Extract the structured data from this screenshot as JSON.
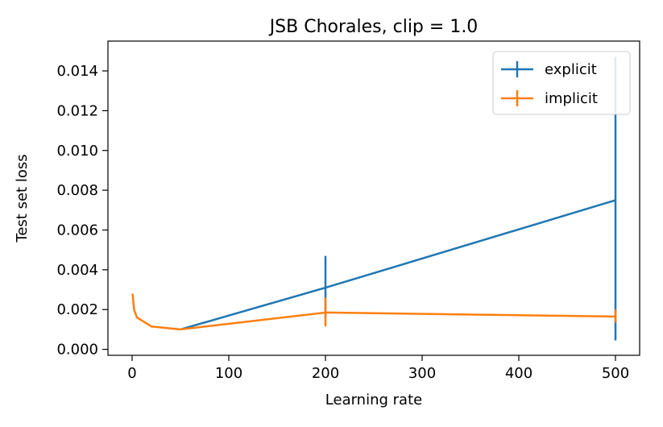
{
  "chart_data": {
    "type": "line",
    "title": "JSB Chorales, clip = 1.0",
    "xlabel": "Learning rate",
    "ylabel": "Test set loss",
    "xlim": [
      -25,
      525
    ],
    "ylim": [
      -0.0003,
      0.0155
    ],
    "xticks": [
      0,
      100,
      200,
      300,
      400,
      500
    ],
    "xtick_labels": [
      "0",
      "100",
      "200",
      "300",
      "400",
      "500"
    ],
    "yticks": [
      0.0,
      0.002,
      0.004,
      0.006,
      0.008,
      0.01,
      0.012,
      0.014
    ],
    "ytick_labels": [
      "0.000",
      "0.002",
      "0.004",
      "0.006",
      "0.008",
      "0.010",
      "0.012",
      "0.014"
    ],
    "grid": false,
    "legend_position": "top-right",
    "series": [
      {
        "name": "explicit",
        "color": "#1f77b4",
        "x": [
          50,
          200,
          500
        ],
        "y": [
          0.001,
          0.0031,
          0.0075
        ],
        "yerr_low": [
          0.001,
          0.0016,
          0.00045
        ],
        "yerr_high": [
          0.001,
          0.0047,
          0.0147
        ]
      },
      {
        "name": "implicit",
        "color": "#ff7f0e",
        "x": [
          0.5,
          2,
          5,
          20,
          50,
          200,
          500
        ],
        "y": [
          0.0028,
          0.002,
          0.0016,
          0.00115,
          0.001,
          0.00185,
          0.00165
        ],
        "yerr_low": [
          0.0028,
          0.002,
          0.0016,
          0.00115,
          0.001,
          0.00115,
          0.00135
        ],
        "yerr_high": [
          0.0028,
          0.002,
          0.0016,
          0.00115,
          0.001,
          0.0026,
          0.002
        ]
      }
    ]
  }
}
